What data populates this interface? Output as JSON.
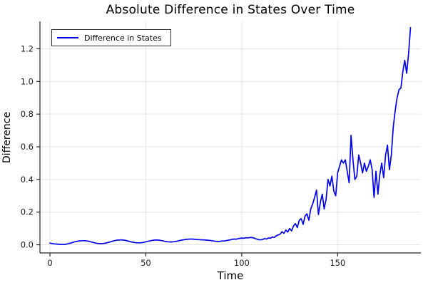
{
  "colors": {
    "series_blue": "#0000ee",
    "grid": "#e6e6e6",
    "axis": "#26282b",
    "tick_text": "#1a1a1a",
    "background": "#ffffff",
    "legend_border": "#2b2b2b"
  },
  "chart_data": {
    "type": "line",
    "title": "Absolute Difference in States Over Time",
    "xlabel": "Time",
    "ylabel": "Difference",
    "grid": true,
    "legend_position": "top-left",
    "x_axis": {
      "lim": [
        -5.2,
        193.4
      ],
      "ticks": [
        0,
        50,
        100,
        150
      ],
      "tick_labels": [
        "0",
        "50",
        "100",
        "150"
      ]
    },
    "y_axis": {
      "lim": [
        -0.05,
        1.368
      ],
      "ticks": [
        0.0,
        0.2,
        0.4,
        0.6,
        0.8,
        1.0,
        1.2
      ],
      "tick_labels": [
        "0.0",
        "0.2",
        "0.4",
        "0.6",
        "0.8",
        "1.0",
        "1.2"
      ]
    },
    "series": [
      {
        "name": "Difference in States",
        "color": "#0000ee",
        "x_start": 0,
        "x_step": 1,
        "values": [
          0.01,
          0.008,
          0.006,
          0.005,
          0.004,
          0.003,
          0.003,
          0.002,
          0.003,
          0.005,
          0.008,
          0.011,
          0.015,
          0.018,
          0.021,
          0.023,
          0.024,
          0.025,
          0.025,
          0.024,
          0.022,
          0.019,
          0.016,
          0.013,
          0.01,
          0.008,
          0.007,
          0.007,
          0.008,
          0.01,
          0.013,
          0.016,
          0.02,
          0.023,
          0.026,
          0.028,
          0.029,
          0.03,
          0.029,
          0.028,
          0.025,
          0.022,
          0.019,
          0.016,
          0.014,
          0.012,
          0.012,
          0.012,
          0.013,
          0.015,
          0.018,
          0.021,
          0.024,
          0.026,
          0.028,
          0.029,
          0.029,
          0.028,
          0.026,
          0.024,
          0.021,
          0.019,
          0.018,
          0.017,
          0.018,
          0.019,
          0.021,
          0.024,
          0.027,
          0.029,
          0.031,
          0.033,
          0.034,
          0.035,
          0.035,
          0.034,
          0.033,
          0.032,
          0.031,
          0.03,
          0.03,
          0.029,
          0.028,
          0.027,
          0.026,
          0.024,
          0.022,
          0.021,
          0.02,
          0.022,
          0.024,
          0.023,
          0.026,
          0.028,
          0.03,
          0.033,
          0.035,
          0.034,
          0.037,
          0.039,
          0.041,
          0.04,
          0.043,
          0.042,
          0.044,
          0.045,
          0.043,
          0.038,
          0.034,
          0.031,
          0.03,
          0.033,
          0.038,
          0.035,
          0.042,
          0.04,
          0.048,
          0.045,
          0.055,
          0.06,
          0.065,
          0.08,
          0.07,
          0.09,
          0.078,
          0.1,
          0.085,
          0.115,
          0.13,
          0.105,
          0.15,
          0.16,
          0.125,
          0.175,
          0.19,
          0.15,
          0.22,
          0.25,
          0.29,
          0.335,
          0.185,
          0.26,
          0.31,
          0.22,
          0.28,
          0.4,
          0.36,
          0.42,
          0.33,
          0.3,
          0.44,
          0.48,
          0.52,
          0.5,
          0.52,
          0.45,
          0.38,
          0.67,
          0.52,
          0.4,
          0.42,
          0.55,
          0.5,
          0.44,
          0.5,
          0.45,
          0.48,
          0.52,
          0.46,
          0.29,
          0.45,
          0.31,
          0.43,
          0.5,
          0.41,
          0.55,
          0.61,
          0.46,
          0.55,
          0.72,
          0.82,
          0.9,
          0.95,
          0.96,
          1.06,
          1.13,
          1.05,
          1.17,
          1.33
        ]
      }
    ],
    "legend_entries": [
      {
        "label": "Difference in States",
        "color": "#0000ee"
      }
    ]
  }
}
